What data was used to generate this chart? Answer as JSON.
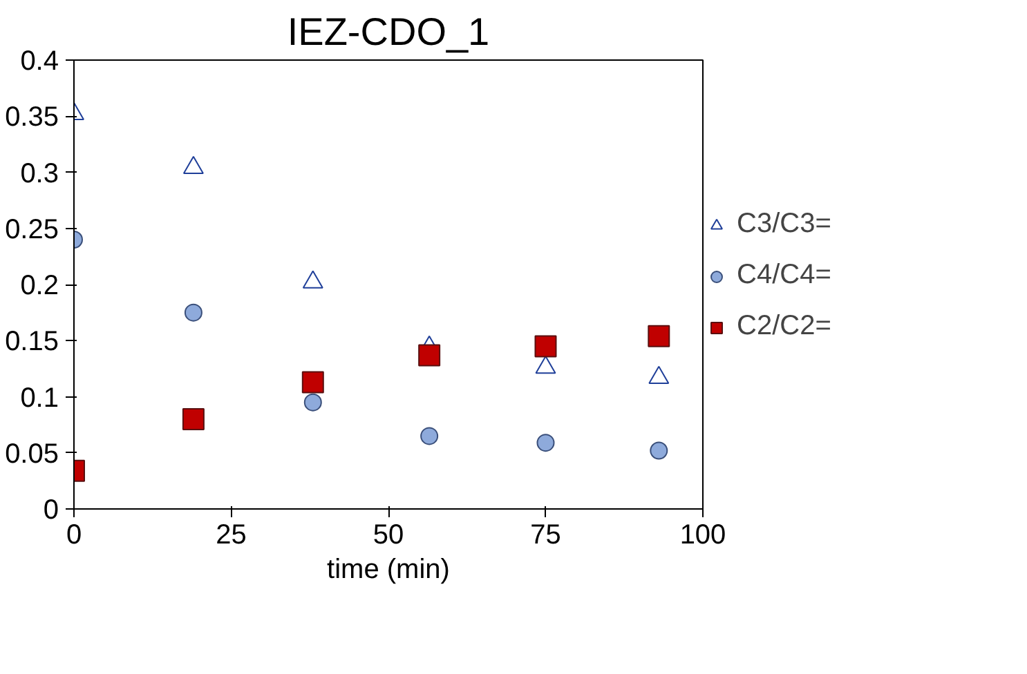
{
  "chart_data": {
    "type": "scatter",
    "title": "IEZ-CDO_1",
    "xlabel": "time (min)",
    "xlim": [
      0,
      100
    ],
    "xticks": [
      0,
      25,
      50,
      75,
      100
    ],
    "ylim": [
      0,
      0.4
    ],
    "yticks": [
      0,
      0.05,
      0.1,
      0.15,
      0.2,
      0.25,
      0.3,
      0.35,
      0.4
    ],
    "grid": false,
    "legend": "right",
    "x": [
      0,
      19,
      38,
      56.5,
      75,
      93
    ],
    "series": [
      {
        "name": "C3/C3=",
        "color": "#ffffff",
        "marker": "triangle",
        "values": [
          0.352,
          0.304,
          0.202,
          0.144,
          0.126,
          0.117
        ]
      },
      {
        "name": "C4/C4=",
        "color": "#8eaadb",
        "marker": "circle",
        "values": [
          0.24,
          0.175,
          0.095,
          0.065,
          0.059,
          0.052
        ]
      },
      {
        "name": "C2/C2=",
        "color": "#c00000",
        "marker": "square",
        "values": [
          0.034,
          0.08,
          0.113,
          0.137,
          0.145,
          0.154
        ]
      }
    ]
  }
}
